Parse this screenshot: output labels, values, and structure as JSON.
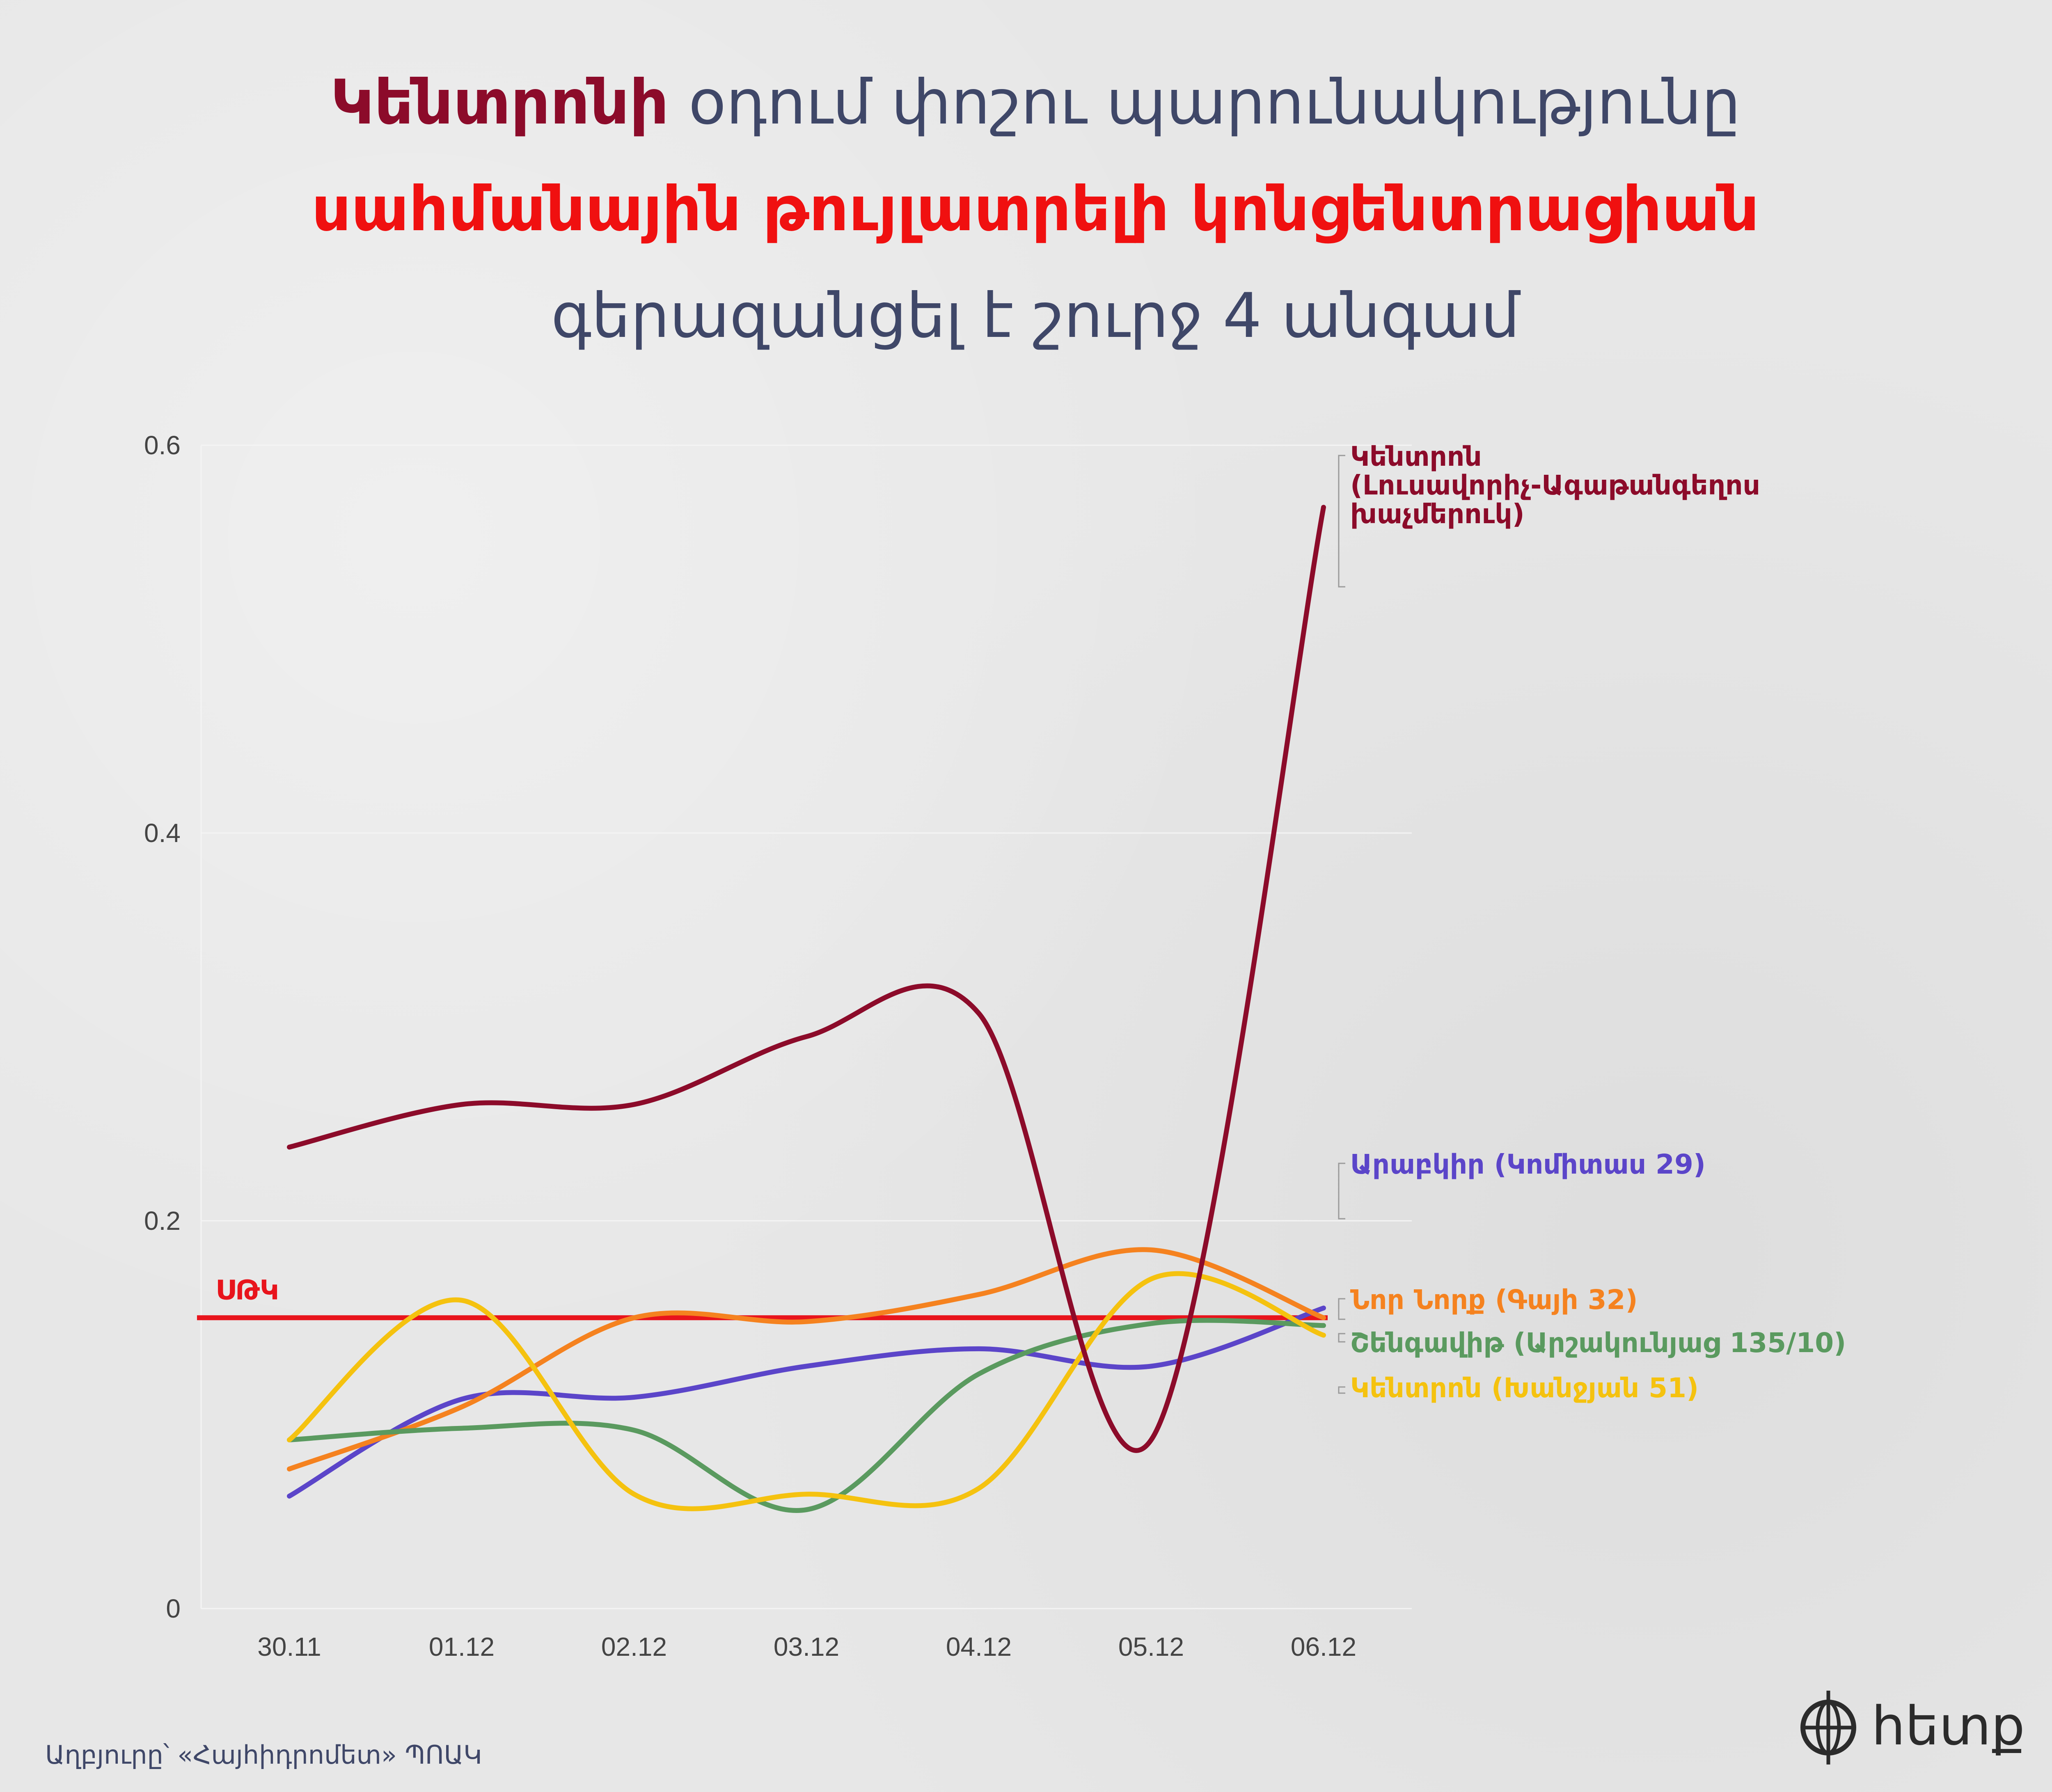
{
  "title": {
    "part1_highlight": "Կենտրոնի",
    "part1_rest": " օդում փոշու պարունակությունը",
    "line2": "սահմանային թույլատրելի կոնցենտրացիան",
    "line3": "գերազանցել է շուրջ 4 անգամ"
  },
  "source": "Աղբյուրը՝ «Հայհիդրոմետ» ՊՈԱԿ",
  "logo": {
    "text": "hետք",
    "icon": "globe-icon"
  },
  "colors": {
    "title_dark": "#8c0b2a",
    "title_red": "#f01010",
    "title_text": "#3f4768",
    "threshold": "#e8141c"
  },
  "chart_data": {
    "type": "line",
    "categories": [
      "30.11",
      "01.12",
      "02.12",
      "03.12",
      "04.12",
      "05.12",
      "06.12"
    ],
    "y_ticks": [
      "0",
      "0.2",
      "0.4",
      "0.6"
    ],
    "ylim": [
      0,
      0.6
    ],
    "grid": true,
    "threshold": {
      "label": "ՍԹԿ",
      "value": 0.15,
      "color": "#e8141c"
    },
    "series": [
      {
        "name": "Կենտրոն\n(Լուսավորիչ-Ագաթանգեղոս\nխաչմերուկ)",
        "color": "#8c0b2a",
        "values": [
          0.238,
          0.26,
          0.26,
          0.295,
          0.307,
          0.087,
          0.568
        ]
      },
      {
        "name": "Արաբկիր (Կոմիտաս 29)",
        "color": "#5b45c9",
        "values": [
          0.058,
          0.108,
          0.109,
          0.125,
          0.134,
          0.125,
          0.155
        ]
      },
      {
        "name": "Նոր Նորք (Գայի 32)",
        "color": "#f5821f",
        "values": [
          0.072,
          0.104,
          0.15,
          0.148,
          0.162,
          0.185,
          0.15
        ]
      },
      {
        "name": "Շենգավիթ (Արշակունյաց 135/10)",
        "color": "#5a9a5f",
        "values": [
          0.087,
          0.093,
          0.092,
          0.051,
          0.121,
          0.147,
          0.146
        ]
      },
      {
        "name": "Կենտրոն (Խանջյան 51)",
        "color": "#f5c20f",
        "values": [
          0.087,
          0.159,
          0.059,
          0.059,
          0.062,
          0.17,
          0.141
        ]
      }
    ]
  }
}
